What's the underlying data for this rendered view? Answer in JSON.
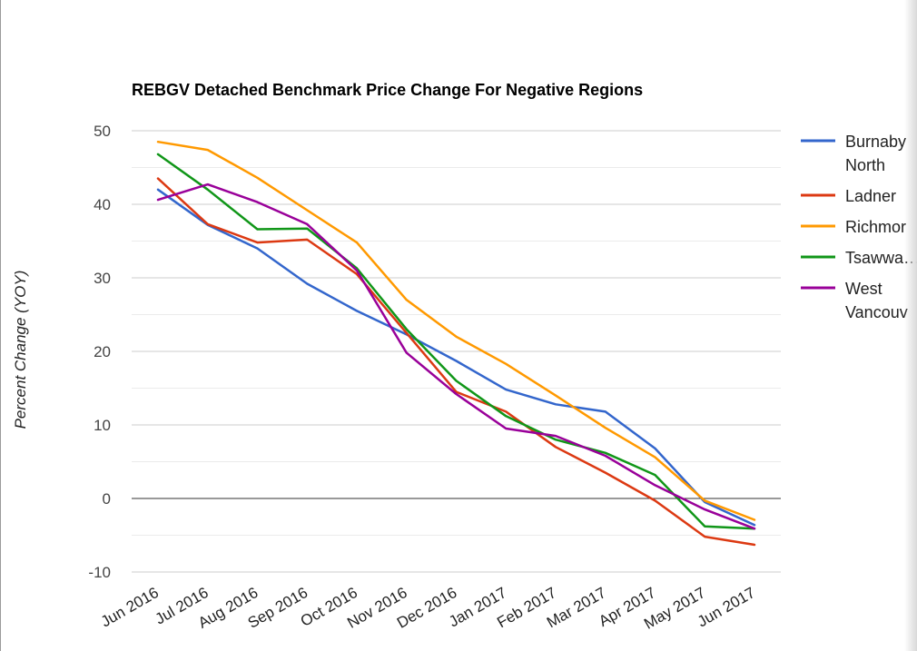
{
  "chart_data": {
    "type": "line",
    "title": "REBGV Detached Benchmark Price Change For Negative Regions",
    "xlabel": "",
    "ylabel": "Percent Change (YOY)",
    "ylim": [
      -10,
      50
    ],
    "yticks": [
      "50",
      "40",
      "30",
      "20",
      "10",
      "0",
      "-10"
    ],
    "grid": true,
    "legend_position": "right",
    "categories": [
      "Jun 2016",
      "Jul 2016",
      "Aug 2016",
      "Sep 2016",
      "Oct 2016",
      "Nov 2016",
      "Dec 2016",
      "Jan 2017",
      "Feb 2017",
      "Mar 2017",
      "Apr 2017",
      "May 2017",
      "Jun 2017"
    ],
    "series": [
      {
        "name": "Burnaby North",
        "legend_lines": [
          "Burnaby",
          "North"
        ],
        "color": "#3366cc",
        "values": [
          42.0,
          37.2,
          34.0,
          29.2,
          25.5,
          22.3,
          18.7,
          14.8,
          12.8,
          11.8,
          6.8,
          -0.5,
          -3.6
        ]
      },
      {
        "name": "Ladner",
        "legend_lines": [
          "Ladner"
        ],
        "color": "#dc3912",
        "values": [
          43.5,
          37.3,
          34.8,
          35.2,
          30.5,
          22.5,
          14.5,
          11.8,
          7.0,
          3.5,
          -0.3,
          -5.2,
          -6.3
        ]
      },
      {
        "name": "Richmond",
        "legend_lines": [
          "Richmor"
        ],
        "color": "#ff9900",
        "values": [
          48.5,
          47.4,
          43.6,
          39.2,
          34.8,
          27.0,
          22.0,
          18.3,
          14.0,
          9.6,
          5.6,
          -0.3,
          -2.9
        ]
      },
      {
        "name": "Tsawwassen",
        "legend_lines": [
          "Tsawwa…"
        ],
        "color": "#109618",
        "values": [
          46.8,
          42.0,
          36.6,
          36.7,
          31.3,
          23.0,
          16.0,
          11.2,
          8.0,
          6.2,
          3.2,
          -3.8,
          -4.1
        ]
      },
      {
        "name": "West Vancouver",
        "legend_lines": [
          "West",
          "Vancouv"
        ],
        "color": "#990099",
        "values": [
          40.6,
          42.7,
          40.3,
          37.3,
          31.0,
          19.8,
          14.2,
          9.5,
          8.5,
          5.8,
          1.8,
          -1.5,
          -4.1
        ]
      }
    ]
  }
}
